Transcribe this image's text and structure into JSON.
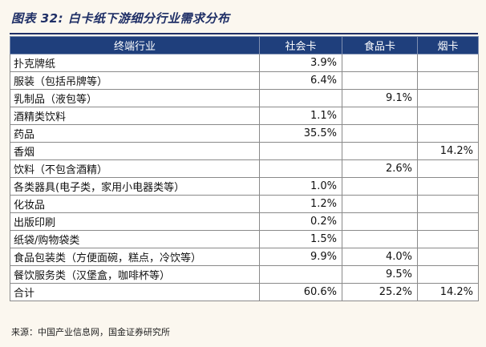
{
  "title": "图表 32:  白卡纸下游细分行业需求分布",
  "headers": [
    "终端行业",
    "社会卡",
    "食品卡",
    "烟卡"
  ],
  "rows": [
    {
      "industry": "扑克牌纸",
      "social": "3.9%",
      "food": "",
      "cigarette": ""
    },
    {
      "industry": "服装（包括吊牌等）",
      "social": "6.4%",
      "food": "",
      "cigarette": ""
    },
    {
      "industry": "乳制品（液包等）",
      "social": "",
      "food": "9.1%",
      "cigarette": ""
    },
    {
      "industry": "酒精类饮料",
      "social": "1.1%",
      "food": "",
      "cigarette": ""
    },
    {
      "industry": "药品",
      "social": "35.5%",
      "food": "",
      "cigarette": ""
    },
    {
      "industry": "香烟",
      "social": "",
      "food": "",
      "cigarette": "14.2%"
    },
    {
      "industry": "饮料（不包含酒精）",
      "social": "",
      "food": "2.6%",
      "cigarette": ""
    },
    {
      "industry": "各类器具(电子类，家用小电器类等）",
      "social": "1.0%",
      "food": "",
      "cigarette": ""
    },
    {
      "industry": "化妆品",
      "social": "1.2%",
      "food": "",
      "cigarette": ""
    },
    {
      "industry": "出版印刷",
      "social": "0.2%",
      "food": "",
      "cigarette": ""
    },
    {
      "industry": "纸袋/购物袋类",
      "social": "1.5%",
      "food": "",
      "cigarette": ""
    },
    {
      "industry": "食品包装类（方便面碗，糕点，冷饮等）",
      "social": "9.9%",
      "food": "4.0%",
      "cigarette": ""
    },
    {
      "industry": "餐饮服务类（汉堡盒，咖啡杯等）",
      "social": "",
      "food": "9.5%",
      "cigarette": ""
    },
    {
      "industry": "合计",
      "social": "60.6%",
      "food": "25.2%",
      "cigarette": "14.2%"
    }
  ],
  "source": "来源：中国产业信息网，国金证券研究所"
}
